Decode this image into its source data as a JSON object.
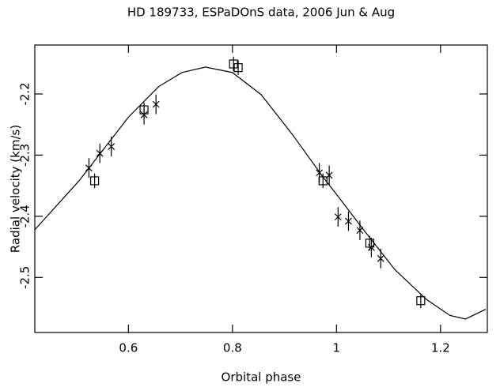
{
  "chart_data": {
    "type": "scatter",
    "title": "HD 189733, ESPaDOnS data, 2006 Jun & Aug",
    "xlabel": "Orbital phase",
    "ylabel": "Radial velocity (km/s)",
    "xlim": [
      0.42,
      1.29
    ],
    "ylim": [
      -2.59,
      -2.12
    ],
    "xticks": [
      0.6,
      0.8,
      1,
      1.2
    ],
    "yticks": [
      -2.2,
      -2.3,
      -2.4,
      -2.5
    ],
    "series": [
      {
        "style": "line",
        "color": "#000000",
        "x": [
          0.42,
          0.505,
          0.6,
          0.658,
          0.703,
          0.748,
          0.8,
          0.855,
          0.915,
          0.976,
          1.0,
          1.052,
          1.112,
          1.173,
          1.218,
          1.248,
          1.287
        ],
        "values": [
          -2.422,
          -2.342,
          -2.238,
          -2.188,
          -2.165,
          -2.156,
          -2.165,
          -2.201,
          -2.266,
          -2.338,
          -2.364,
          -2.422,
          -2.487,
          -2.536,
          -2.562,
          -2.568,
          -2.552
        ]
      },
      {
        "style": "cross",
        "color": "#000000",
        "x": [
          0.524,
          0.545,
          0.567,
          0.63,
          0.653,
          0.967,
          0.986,
          1.003,
          1.023,
          1.045,
          1.067,
          1.085
        ],
        "values": [
          -2.321,
          -2.297,
          -2.286,
          -2.234,
          -2.217,
          -2.329,
          -2.333,
          -2.401,
          -2.408,
          -2.423,
          -2.451,
          -2.469
        ],
        "errors": [
          0.016,
          0.016,
          0.016,
          0.016,
          0.016,
          0.016,
          0.016,
          0.016,
          0.016,
          0.016,
          0.016,
          0.016
        ]
      },
      {
        "style": "square",
        "color": "#000000",
        "x": [
          0.535,
          0.63,
          0.802,
          0.811,
          0.974,
          1.064,
          1.162
        ],
        "values": [
          -2.342,
          -2.226,
          -2.151,
          -2.157,
          -2.342,
          -2.444,
          -2.538
        ],
        "errors": [
          0.012,
          0.012,
          0.012,
          0.012,
          0.012,
          0.012,
          0.012
        ]
      }
    ]
  }
}
